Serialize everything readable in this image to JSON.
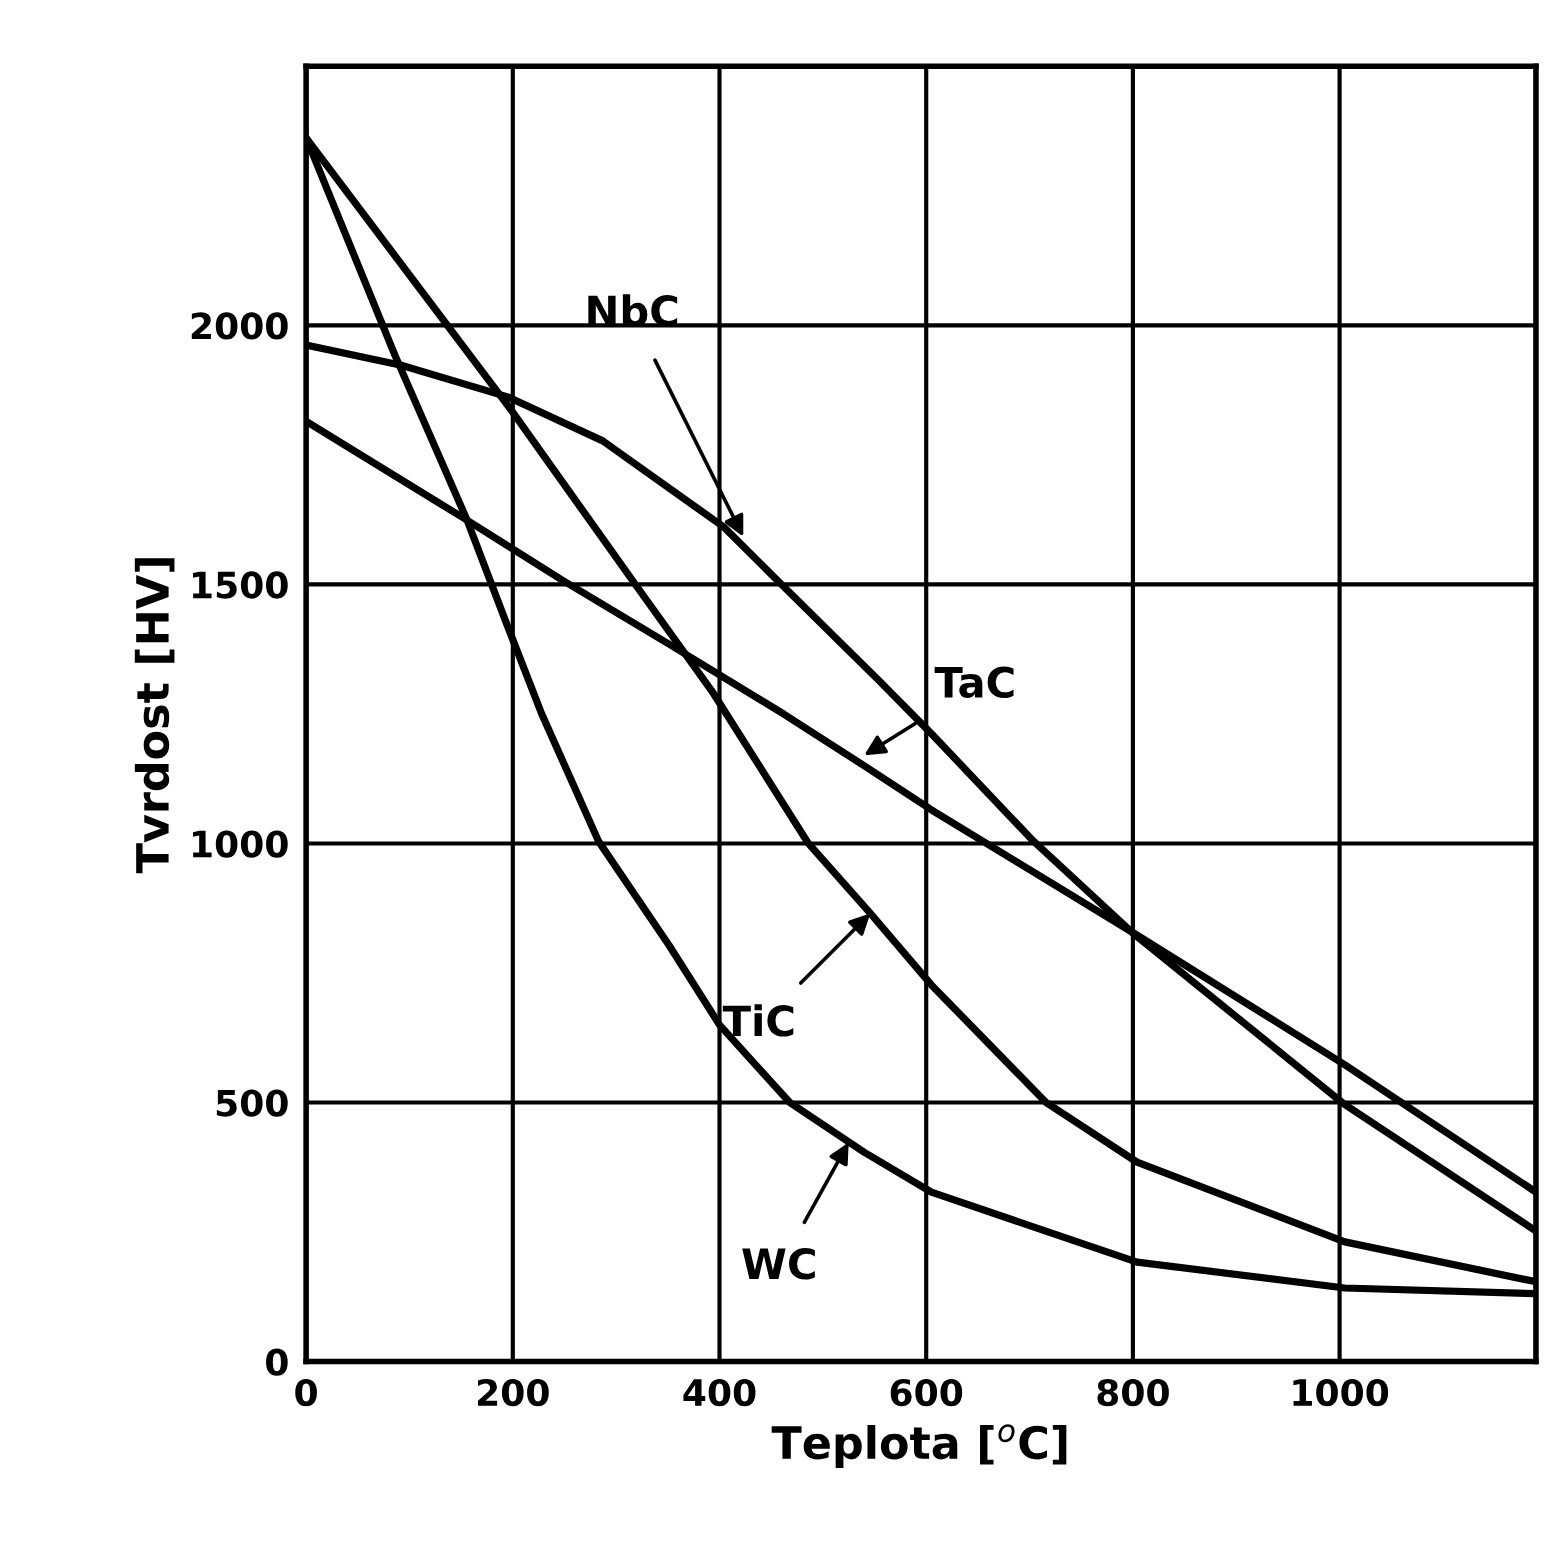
{
  "chart_data": {
    "type": "line",
    "xlabel": "Teplota [$^{o}$C]",
    "ylabel": "Tvrdost [HV]",
    "xlim": [
      0,
      1190
    ],
    "ylim": [
      0,
      2500
    ],
    "xticks": [
      0,
      200,
      400,
      600,
      800,
      1000
    ],
    "yticks": [
      0,
      500,
      1000,
      1500,
      2000
    ],
    "grid": true,
    "line_style": "solid",
    "marker": "none",
    "series": [
      {
        "color": "#000000",
        "x": [
          0,
          92,
          195,
          287,
          404,
          462,
          554,
          605,
          702,
          800,
          1005,
          1190
        ],
        "values": [
          1962,
          1923,
          1862,
          1777,
          1611,
          1496,
          1315,
          1212,
          1008,
          827,
          496,
          252
        ]
      },
      {
        "color": "#000000",
        "x": [
          0,
          150,
          248,
          351,
          462,
          540,
          605,
          804,
          1005,
          1190
        ],
        "values": [
          1815,
          1631,
          1508,
          1385,
          1250,
          1150,
          1065,
          823,
          573,
          327
        ]
      },
      {
        "color": "#000000",
        "x": [
          0,
          199,
          320,
          394,
          486,
          546,
          605,
          716,
          804,
          1005,
          1190
        ],
        "values": [
          2362,
          1835,
          1496,
          1290,
          1000,
          865,
          727,
          500,
          385,
          231,
          154
        ]
      },
      {
        "color": "#000000",
        "x": [
          0,
          86,
          156,
          195,
          228,
          283,
          351,
          400,
          468,
          540,
          605,
          804,
          1005,
          1190
        ],
        "values": [
          2362,
          1942,
          1623,
          1419,
          1250,
          1004,
          804,
          650,
          500,
          404,
          327,
          192,
          142,
          131
        ]
      }
    ],
    "annotations": [
      {
        "text": "NbC",
        "x": 423,
        "y": 1592
      },
      {
        "text": "TaC",
        "x": 540,
        "y": 1170
      },
      {
        "text": "TiC",
        "x": 546,
        "y": 865
      },
      {
        "text": "WC",
        "x": 525,
        "y": 423
      }
    ]
  }
}
